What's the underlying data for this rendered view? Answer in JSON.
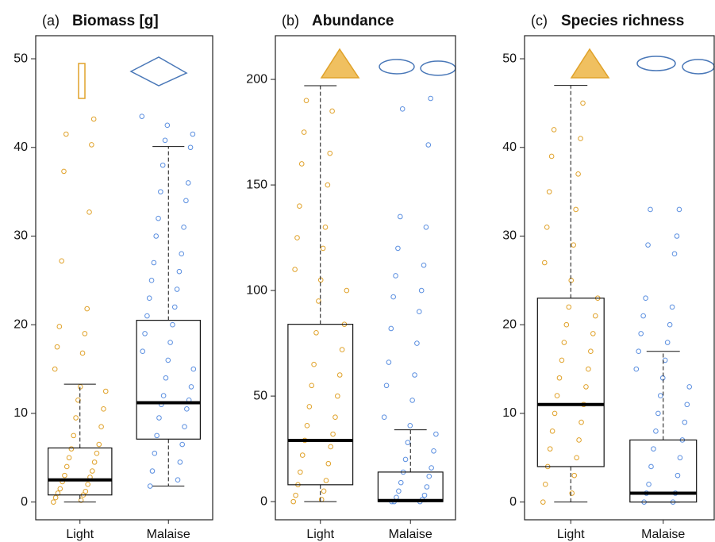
{
  "chart_data": [
    {
      "type": "box",
      "label": "(a)",
      "title": "Biomass [g]",
      "categories": [
        "Light",
        "Malaise"
      ],
      "ylim": [
        -2,
        52.6
      ],
      "yticks": [
        0,
        10,
        20,
        30,
        40,
        50
      ],
      "boxes": [
        {
          "color": "#e0a22a",
          "whislo": 0,
          "q1": 0.8,
          "med": 2.5,
          "q3": 6.1,
          "whishi": 13.3,
          "points": [
            0,
            0.2,
            0.5,
            0.8,
            1,
            1.2,
            1.5,
            2,
            2.3,
            2.8,
            3,
            3.5,
            4,
            4.5,
            5,
            5.5,
            6,
            6.5,
            7.5,
            8.5,
            9.5,
            10.5,
            11.5,
            12.5,
            13,
            15,
            16.8,
            17.5,
            19,
            19.8,
            21.8,
            27.2,
            32.7,
            37.3,
            40.3,
            41.5,
            43.2
          ]
        },
        {
          "color": "#5b8fe0",
          "whislo": 1.8,
          "q1": 7.1,
          "med": 11.2,
          "q3": 20.5,
          "whishi": 40.1,
          "points": [
            1.8,
            2.5,
            3.5,
            4.5,
            5.5,
            6.5,
            7.5,
            8.5,
            9.5,
            10.5,
            11,
            11.5,
            12,
            13,
            14,
            15,
            16,
            17,
            18,
            19,
            20,
            21,
            22,
            23,
            24,
            25,
            26,
            27,
            28,
            30,
            31,
            32,
            34,
            35,
            36,
            38,
            40,
            40.8,
            41.5,
            42.5,
            43.5
          ]
        }
      ]
    },
    {
      "type": "box",
      "label": "(b)",
      "title": "Abundance",
      "categories": [
        "Light",
        "Malaise"
      ],
      "ylim": [
        -8.6,
        220.7
      ],
      "yticks": [
        0,
        50,
        100,
        150,
        200
      ],
      "boxes": [
        {
          "color": "#e0a22a",
          "whislo": 0,
          "q1": 8,
          "med": 29,
          "q3": 84,
          "whishi": 197,
          "points": [
            0,
            1,
            3,
            5,
            8,
            10,
            14,
            18,
            22,
            26,
            29,
            32,
            36,
            40,
            45,
            50,
            55,
            60,
            65,
            72,
            80,
            84,
            95,
            100,
            105,
            110,
            120,
            125,
            130,
            140,
            150,
            160,
            165,
            175,
            185,
            190
          ]
        },
        {
          "color": "#5b8fe0",
          "whislo": 0,
          "q1": 0,
          "med": 0.5,
          "q3": 14,
          "whishi": 34,
          "points": [
            0,
            0,
            0,
            1,
            2,
            3,
            5,
            7,
            9,
            12,
            14,
            16,
            20,
            24,
            28,
            32,
            36,
            40,
            48,
            55,
            60,
            66,
            75,
            82,
            90,
            97,
            100,
            107,
            112,
            120,
            130,
            135,
            169,
            186,
            191
          ]
        }
      ]
    },
    {
      "type": "box",
      "label": "(c)",
      "title": "Species richness",
      "categories": [
        "Light",
        "Malaise"
      ],
      "ylim": [
        -2,
        52.6
      ],
      "yticks": [
        0,
        10,
        20,
        30,
        40,
        50
      ],
      "boxes": [
        {
          "color": "#e0a22a",
          "whislo": 0,
          "q1": 4,
          "med": 11,
          "q3": 23,
          "whishi": 47,
          "points": [
            0,
            1,
            2,
            3,
            4,
            5,
            6,
            7,
            8,
            9,
            10,
            11,
            12,
            13,
            14,
            15,
            16,
            17,
            18,
            19,
            20,
            21,
            22,
            23,
            25,
            27,
            29,
            31,
            33,
            35,
            37,
            39,
            41,
            42,
            45
          ]
        },
        {
          "color": "#5b8fe0",
          "whislo": 0,
          "q1": 0,
          "med": 1,
          "q3": 7,
          "whishi": 17,
          "points": [
            0,
            0,
            1,
            1,
            2,
            3,
            4,
            5,
            6,
            7,
            8,
            9,
            10,
            11,
            12,
            13,
            14,
            15,
            16,
            17,
            18,
            19,
            20,
            21,
            22,
            23,
            28,
            29,
            30,
            33,
            33
          ]
        }
      ]
    }
  ]
}
